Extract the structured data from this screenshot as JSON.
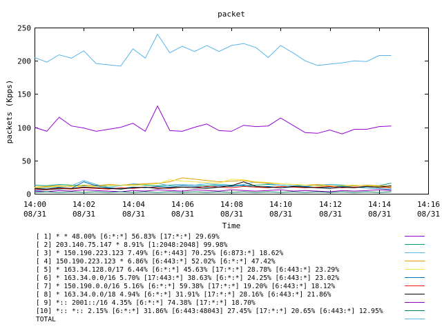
{
  "chart_data": {
    "type": "line",
    "title": "packet",
    "xlabel": "Time",
    "ylabel": "packets (Kpps)",
    "ylim": [
      0,
      250
    ],
    "yticks": [
      0,
      50,
      100,
      150,
      200,
      250
    ],
    "xlim_minutes": [
      0,
      16
    ],
    "xticks": [
      {
        "time": "14:00",
        "date": "08/31"
      },
      {
        "time": "14:02",
        "date": "08/31"
      },
      {
        "time": "14:04",
        "date": "08/31"
      },
      {
        "time": "14:06",
        "date": "08/31"
      },
      {
        "time": "14:08",
        "date": "08/31"
      },
      {
        "time": "14:10",
        "date": "08/31"
      },
      {
        "time": "14:12",
        "date": "08/31"
      },
      {
        "time": "14:14",
        "date": "08/31"
      },
      {
        "time": "14:16",
        "date": "08/31"
      }
    ],
    "grid": false,
    "legend_position": "bottom",
    "x_minutes": [
      0,
      0.5,
      1,
      1.5,
      2,
      2.5,
      3,
      3.5,
      4,
      4.5,
      5,
      5.5,
      6,
      6.5,
      7,
      7.5,
      8,
      8.5,
      9,
      9.5,
      10,
      10.5,
      11,
      11.5,
      12,
      12.5,
      13,
      13.5,
      14,
      14.5
    ],
    "series": [
      {
        "name": "[ 1] * * 48.00%  [6:*:*] 56.83% [17:*:*] 29.69%",
        "color": "#9400d3",
        "values": [
          100,
          94,
          115,
          102,
          99,
          94,
          97,
          100,
          106,
          94,
          132,
          95,
          94,
          100,
          105,
          95,
          94,
          103,
          101,
          102,
          114,
          103,
          92,
          91,
          96,
          90,
          97,
          97,
          101,
          102
        ]
      },
      {
        "name": "[ 2] 203.140.75.147 * 8.91%  [1:2048:2048] 99.98%",
        "color": "#009e73",
        "values": [
          13,
          12,
          14,
          13,
          12,
          13,
          12,
          13,
          14,
          13,
          12,
          13,
          14,
          13,
          12,
          14,
          13,
          12,
          13,
          14,
          13,
          12,
          13,
          12,
          14,
          13,
          12,
          13,
          12,
          16
        ]
      },
      {
        "name": "[ 3] * 150.190.223.123 7.49%  [6:*:443] 70.25% [6:873:*] 18.62%",
        "color": "#56b4e9",
        "values": [
          8,
          9,
          10,
          12,
          20,
          14,
          10,
          12,
          15,
          14,
          16,
          12,
          14,
          13,
          15,
          14,
          12,
          14,
          18,
          15,
          13,
          12,
          11,
          13,
          14,
          12,
          13,
          12,
          11,
          8
        ]
      },
      {
        "name": "[ 4] 150.190.223.123 * 6.86%  [6:443:*] 52.02% [6:*:*] 47.42%",
        "color": "#e69f00",
        "values": [
          10,
          11,
          12,
          11,
          13,
          12,
          14,
          13,
          14,
          15,
          16,
          18,
          24,
          22,
          20,
          18,
          19,
          20,
          17,
          16,
          15,
          14,
          13,
          14,
          12,
          11,
          12,
          13,
          12,
          11
        ]
      },
      {
        "name": "[ 5] * 163.34.128.0/17 6.44%  [6:*:*] 45.63% [17:*:*] 28.78% [6:443:*] 23.29%",
        "color": "#f0e442",
        "values": [
          9,
          10,
          11,
          12,
          10,
          11,
          12,
          13,
          12,
          14,
          15,
          21,
          19,
          18,
          17,
          16,
          22,
          21,
          18,
          17,
          15,
          14,
          13,
          12,
          11,
          12,
          13,
          12,
          11,
          10
        ]
      },
      {
        "name": "[ 6] * 163.34.0.0/16 5.70%  [17:443:*] 38.63% [6:*:*] 24.25% [6:443:*] 23.02%",
        "color": "#0072b2",
        "values": [
          5,
          6,
          7,
          8,
          18,
          12,
          9,
          8,
          10,
          9,
          11,
          10,
          12,
          11,
          10,
          12,
          11,
          13,
          10,
          11,
          9,
          10,
          11,
          9,
          10,
          11,
          10,
          9,
          8,
          6
        ]
      },
      {
        "name": "[ 7] * 150.190.0.0/16 5.16%  [6:*:*] 59.38% [17:*:*] 19.20% [6:443:*] 18.12%",
        "color": "#e51e10",
        "values": [
          7,
          6,
          8,
          7,
          9,
          8,
          7,
          9,
          8,
          10,
          9,
          8,
          10,
          9,
          11,
          10,
          9,
          11,
          10,
          9,
          11,
          10,
          9,
          10,
          11,
          9,
          10,
          11,
          10,
          9
        ]
      },
      {
        "name": "[ 8] * 163.34.0.0/18 4.94%  [6:*:*] 31.91% [17:*:*] 28.16% [6:443:*] 21.86%",
        "color": "#000000",
        "values": [
          8,
          7,
          9,
          8,
          10,
          9,
          8,
          7,
          9,
          10,
          8,
          9,
          10,
          9,
          8,
          10,
          12,
          18,
          11,
          10,
          9,
          11,
          10,
          9,
          8,
          10,
          9,
          11,
          10,
          12
        ]
      },
      {
        "name": "[ 9] *:: 2001::/16 4.35%  [6:*:*] 74.38% [17:*:*] 18.70%",
        "color": "#8b00b8",
        "values": [
          4,
          3,
          5,
          4,
          6,
          5,
          4,
          3,
          5,
          4,
          6,
          5,
          4,
          6,
          5,
          4,
          6,
          5,
          4,
          5,
          6,
          4,
          5,
          4,
          3,
          5,
          4,
          5,
          6,
          5
        ]
      },
      {
        "name": "[10] *:: *:: 2.15%  [6:*:*] 31.86% [6:443:48043] 27.45% [17:*:*] 20.65% [6:443:*] 12.95%",
        "color": "#007a5c",
        "values": [
          2,
          3,
          2,
          3,
          2,
          3,
          2,
          3,
          2,
          3,
          2,
          3,
          2,
          3,
          2,
          3,
          2,
          3,
          2,
          3,
          2,
          3,
          2,
          3,
          2,
          3,
          2,
          3,
          2,
          3
        ]
      },
      {
        "name": "TOTAL",
        "color": "#56b4e9",
        "values": [
          205,
          198,
          209,
          204,
          215,
          196,
          194,
          192,
          218,
          204,
          240,
          212,
          222,
          214,
          223,
          214,
          223,
          226,
          220,
          205,
          223,
          212,
          200,
          193,
          195,
          197,
          200,
          199,
          208,
          208
        ]
      }
    ]
  }
}
